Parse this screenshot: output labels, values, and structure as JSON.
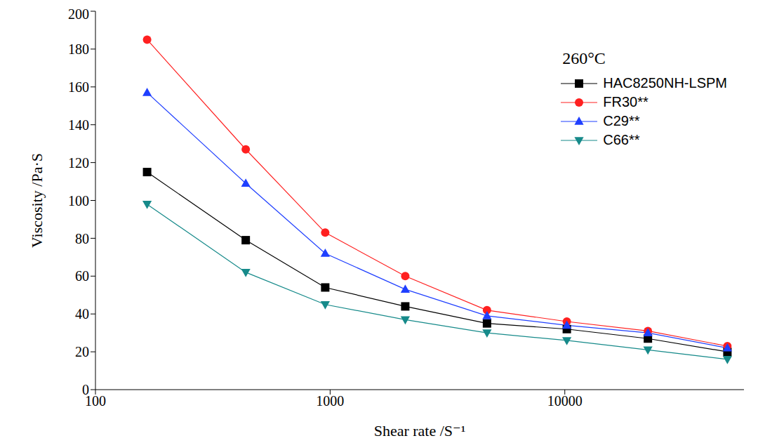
{
  "chart_data": {
    "type": "line",
    "annotations": [
      "260°C"
    ],
    "x_label": "Shear rate /S⁻¹",
    "y_label": "Viscosity /Pa·S",
    "x": [
      166,
      437,
      953,
      2090,
      4660,
      10200,
      22600,
      49300
    ],
    "series": [
      {
        "name": "HAC8250NH-LSPM",
        "color": "#000000",
        "marker": "square",
        "values": [
          115,
          79,
          54,
          44,
          35,
          32,
          27,
          20
        ]
      },
      {
        "name": "FR30**",
        "color": "#ff2020",
        "marker": "circle",
        "values": [
          185,
          127,
          83,
          60,
          42,
          36,
          31,
          23
        ]
      },
      {
        "name": "C29**",
        "color": "#1f3fff",
        "marker": "triangle",
        "values": [
          157,
          109,
          72,
          53,
          39,
          34,
          30,
          22
        ]
      },
      {
        "name": "C66**",
        "color": "#168a8a",
        "marker": "triangle-down",
        "values": [
          98,
          62,
          45,
          37,
          30,
          26,
          21,
          16
        ]
      }
    ],
    "xlim": [
      100,
      58000
    ],
    "ylim": [
      0,
      200
    ],
    "xticks": [
      100,
      1000,
      10000
    ],
    "yticks": [
      0,
      20,
      40,
      60,
      80,
      100,
      120,
      140,
      160,
      180,
      200
    ],
    "log": "x",
    "grid": false,
    "legend": "upper right"
  }
}
